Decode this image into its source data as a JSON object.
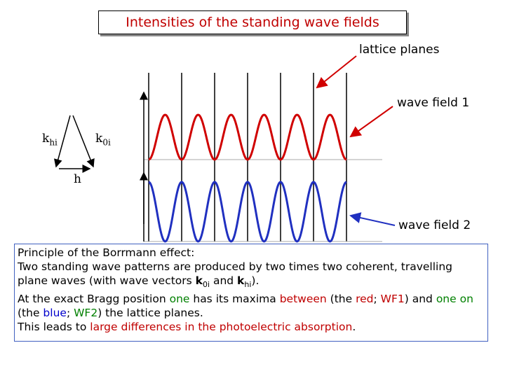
{
  "title": "Intensities of the standing wave fields",
  "labels": {
    "lattice_planes": "lattice planes",
    "wave_field_1": "wave field 1",
    "wave_field_2": "wave field 2"
  },
  "vectors": {
    "k_hi": {
      "base": "k",
      "sub": "hi"
    },
    "k_0i": {
      "base": "k",
      "sub": "0i"
    },
    "h": "h"
  },
  "paragraph": [
    [
      {
        "text": "Principle of the Borrmann effect:"
      }
    ],
    [
      {
        "text": "Two standing wave patterns are produced by two times two coherent, travelling plane waves (with wave vectors "
      },
      {
        "text": "k",
        "bold": true
      },
      {
        "text": "0i",
        "sub": true
      },
      {
        "text": " and "
      },
      {
        "text": "k",
        "bold": true
      },
      {
        "text": "hi",
        "sub": true
      },
      {
        "text": ")."
      }
    ],
    [
      {
        "text": "At the exact Bragg position "
      },
      {
        "text": "one",
        "color": "#008000"
      },
      {
        "text": " has its maxima "
      },
      {
        "text": "between",
        "color": "#c00000"
      },
      {
        "text": " (the "
      },
      {
        "text": "red",
        "color": "#c00000"
      },
      {
        "text": "; "
      },
      {
        "text": "WF1",
        "color": "#c00000"
      },
      {
        "text": ") and "
      },
      {
        "text": "one",
        "color": "#008000"
      },
      {
        "text": " on",
        "color": "#008000"
      },
      {
        "text": " (the "
      },
      {
        "text": "blue",
        "color": "#0000cc"
      },
      {
        "text": "; "
      },
      {
        "text": "WF2",
        "color": "#008000"
      },
      {
        "text": ") the lattice planes."
      }
    ],
    [
      {
        "text": "This leads to "
      },
      {
        "text": "large differences in the photoelectric absorption",
        "color": "#c00000"
      },
      {
        "text": "."
      }
    ]
  ]
}
